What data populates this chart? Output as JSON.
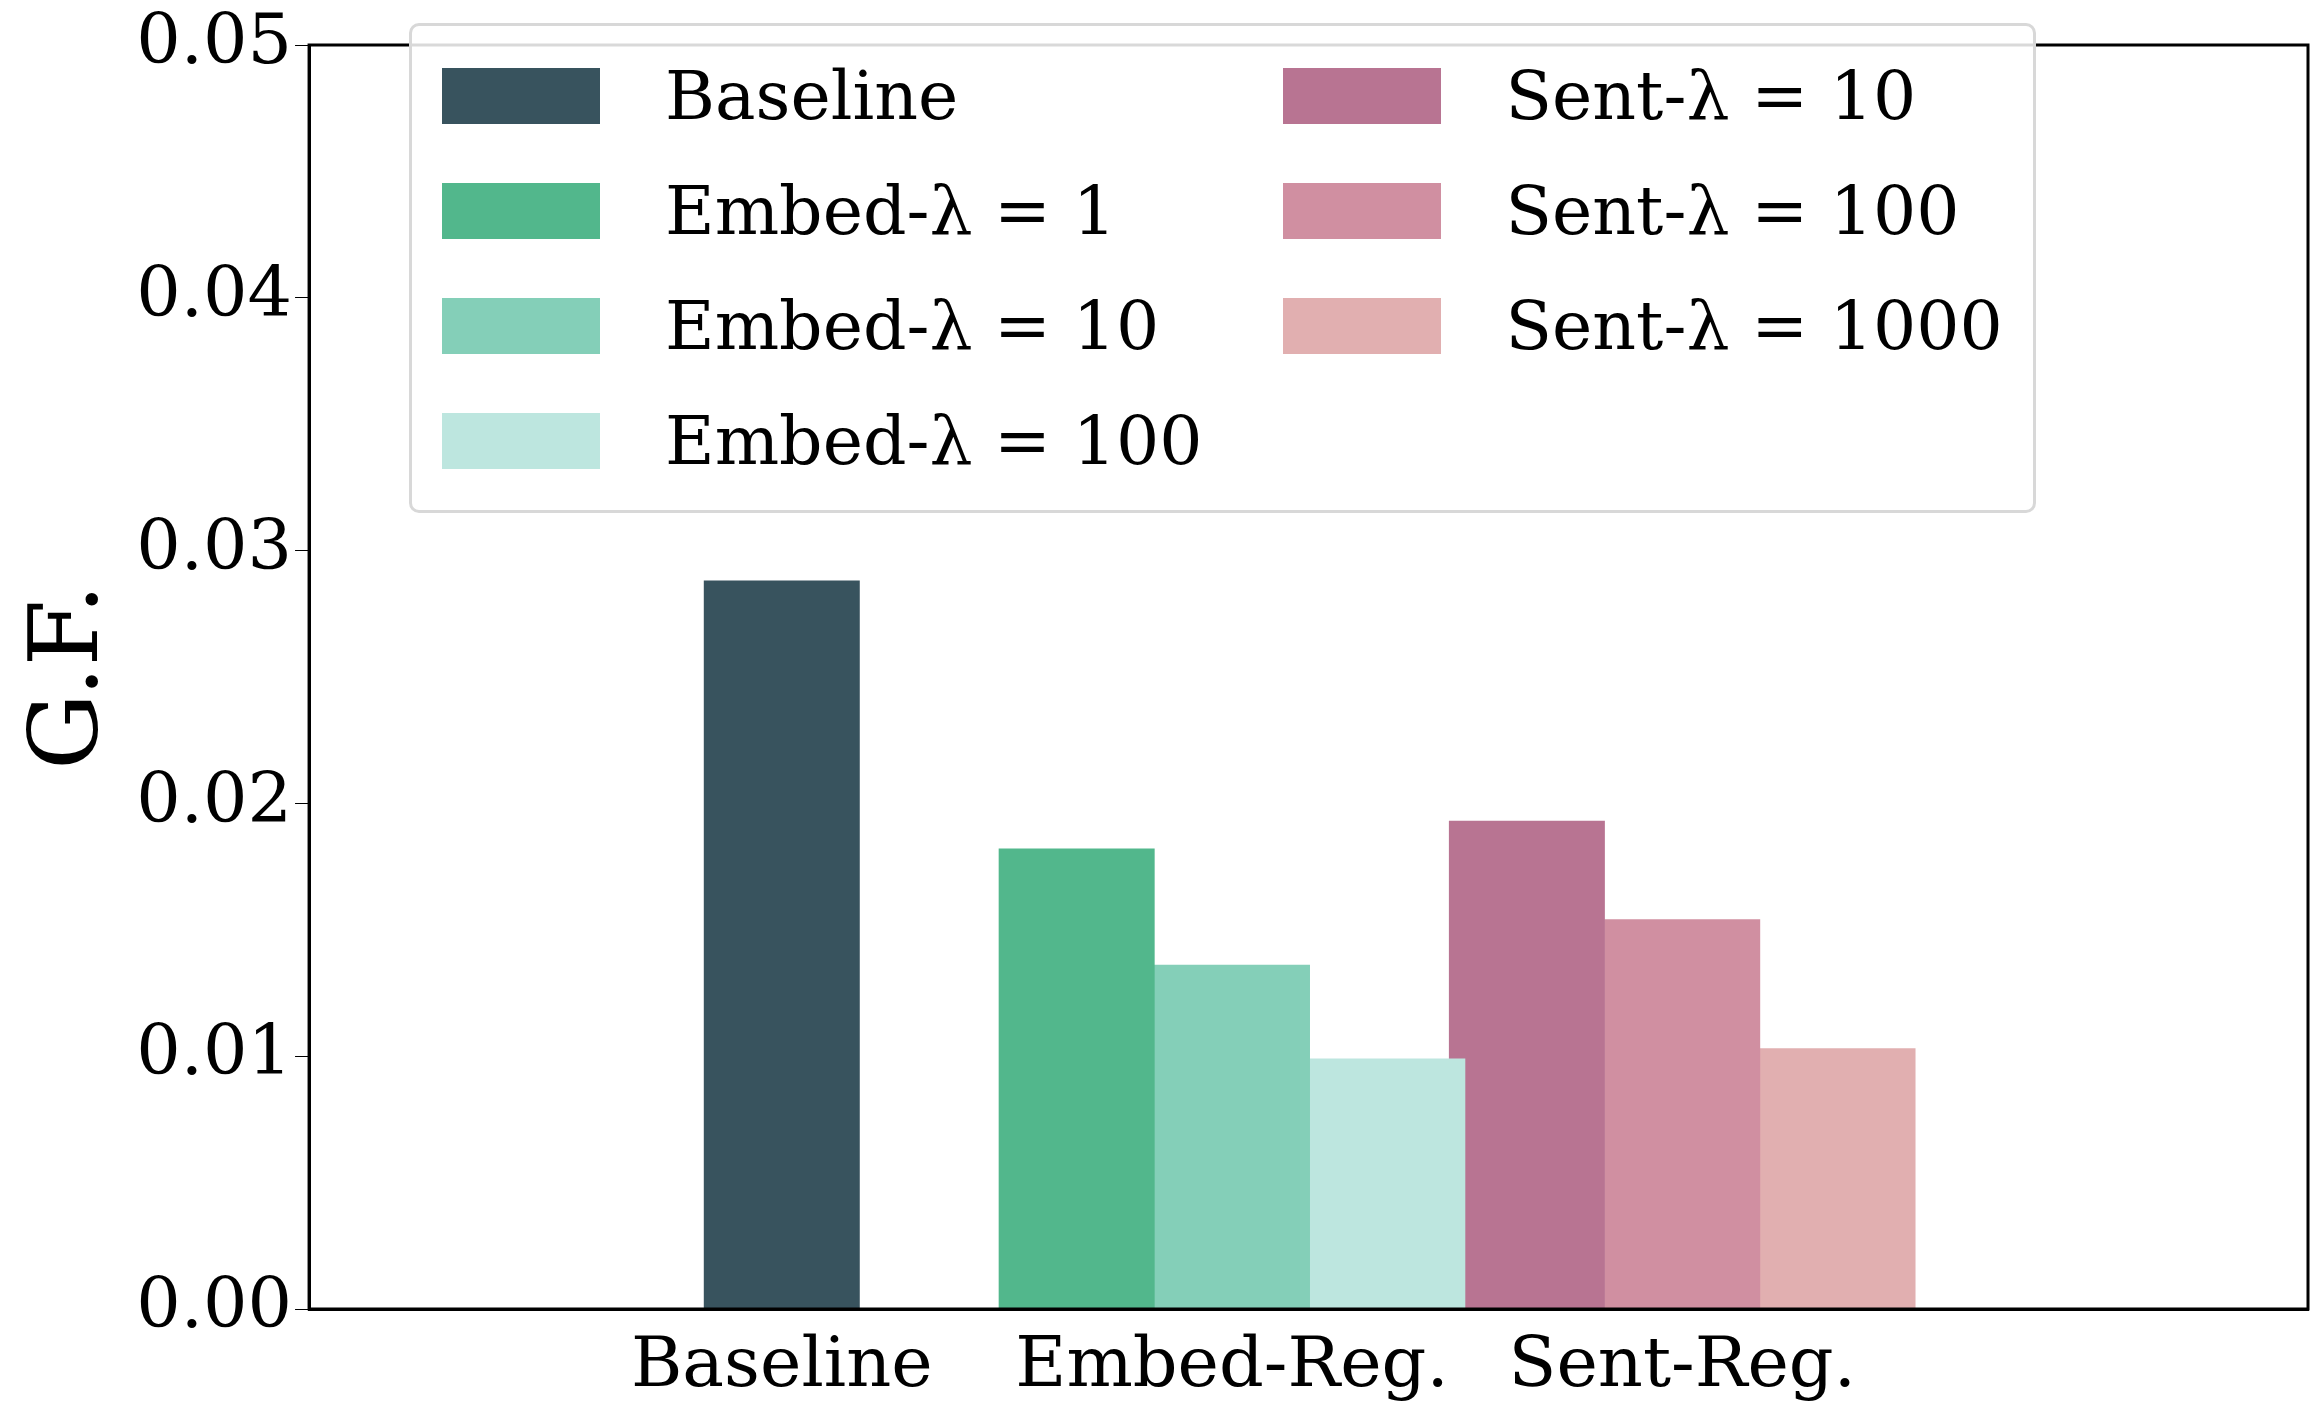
{
  "chart_data": {
    "type": "bar",
    "ylabel": "G.F.",
    "categories": [
      "Baseline",
      "Embed-Reg.",
      "Sent-Reg."
    ],
    "series": [
      {
        "name": "Baseline",
        "color": "#38535e",
        "values": [
          0.0288,
          null,
          null
        ]
      },
      {
        "name": "Embed-λ = 1",
        "color": "#52b78c",
        "values": [
          null,
          0.0182,
          null
        ]
      },
      {
        "name": "Embed-λ = 10",
        "color": "#84cfb8",
        "values": [
          null,
          0.0136,
          null
        ]
      },
      {
        "name": "Embed-λ = 100",
        "color": "#bde6df",
        "values": [
          null,
          0.0099,
          null
        ]
      },
      {
        "name": "Sent-λ = 10",
        "color": "#b87492",
        "values": [
          null,
          null,
          0.0193
        ]
      },
      {
        "name": "Sent-λ = 100",
        "color": "#d08fa1",
        "values": [
          null,
          null,
          0.0154
        ]
      },
      {
        "name": "Sent-λ = 1000",
        "color": "#e1afb0",
        "values": [
          null,
          null,
          0.0103
        ]
      }
    ],
    "ylim": [
      0,
      0.05
    ],
    "yticks": [
      {
        "value": 0,
        "label": "0.00"
      },
      {
        "value": 0.01,
        "label": "0.01"
      },
      {
        "value": 0.02,
        "label": "0.02"
      },
      {
        "value": 0.03,
        "label": "0.03"
      },
      {
        "value": 0.04,
        "label": "0.04"
      },
      {
        "value": 0.05,
        "label": "0.05"
      }
    ],
    "grid": false,
    "legend": "top"
  }
}
